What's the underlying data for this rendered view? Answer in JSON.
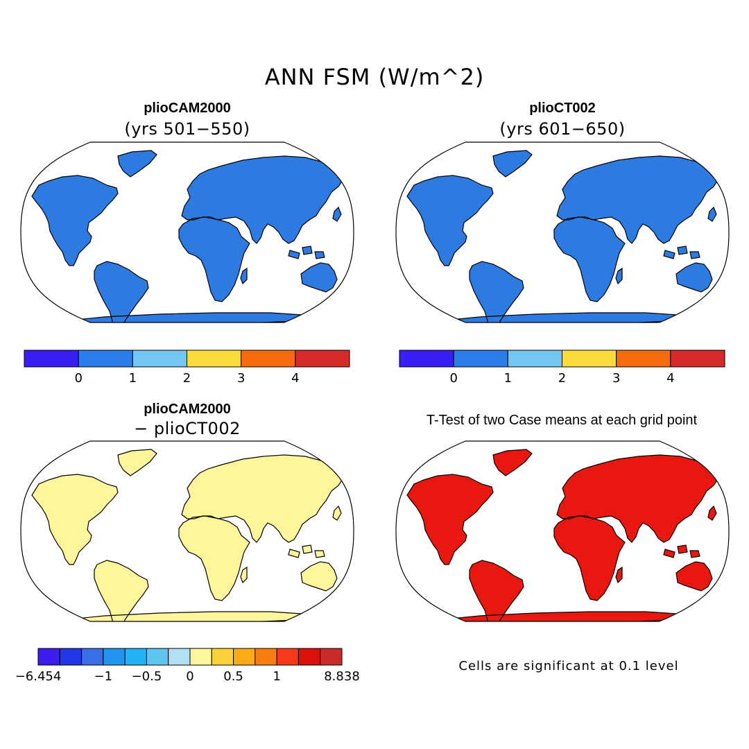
{
  "figure": {
    "title": "ANN FSM (W/m^2)"
  },
  "panels": [
    {
      "id": "case1",
      "title": "plioCAM2000",
      "subtitle": "(yrs 501−550)",
      "fill": "#2d7ae0"
    },
    {
      "id": "case2",
      "title": "plioCT002",
      "subtitle": "(yrs 601−650)",
      "fill": "#2d7ae0"
    },
    {
      "id": "diff",
      "title": "plioCAM2000",
      "subtitle": "− plioCT002",
      "fill": "#fff59a"
    },
    {
      "id": "ttest",
      "title": "T-Test of two Case means at each grid point",
      "subtitle": "",
      "fill": "#e8170f"
    }
  ],
  "colorbars": {
    "abs": {
      "colors": [
        "#3a1ff5",
        "#2b7de9",
        "#74c6f0",
        "#fbdc3c",
        "#f56b10",
        "#d42a2a"
      ],
      "labels": [
        "0",
        "1",
        "2",
        "3",
        "4"
      ]
    },
    "diff": {
      "colors": [
        "#3c1ef0",
        "#2236e8",
        "#3a6ee6",
        "#2194f2",
        "#1fb3f5",
        "#5dc5ef",
        "#b3dff2",
        "#fdf79b",
        "#fbd23c",
        "#fbaa18",
        "#f87e12",
        "#f43a18",
        "#dc0f0f",
        "#c92a2a"
      ],
      "labels": [
        "−6.454",
        "−1",
        "−0.5",
        "0",
        "0.5",
        "1",
        "8.838"
      ]
    }
  },
  "ttest_note": "Cells are significant at 0.1 level",
  "colors": {
    "significant": "#e8170f",
    "land_abs": "#2d7ae0",
    "land_diff": "#fff59a"
  }
}
